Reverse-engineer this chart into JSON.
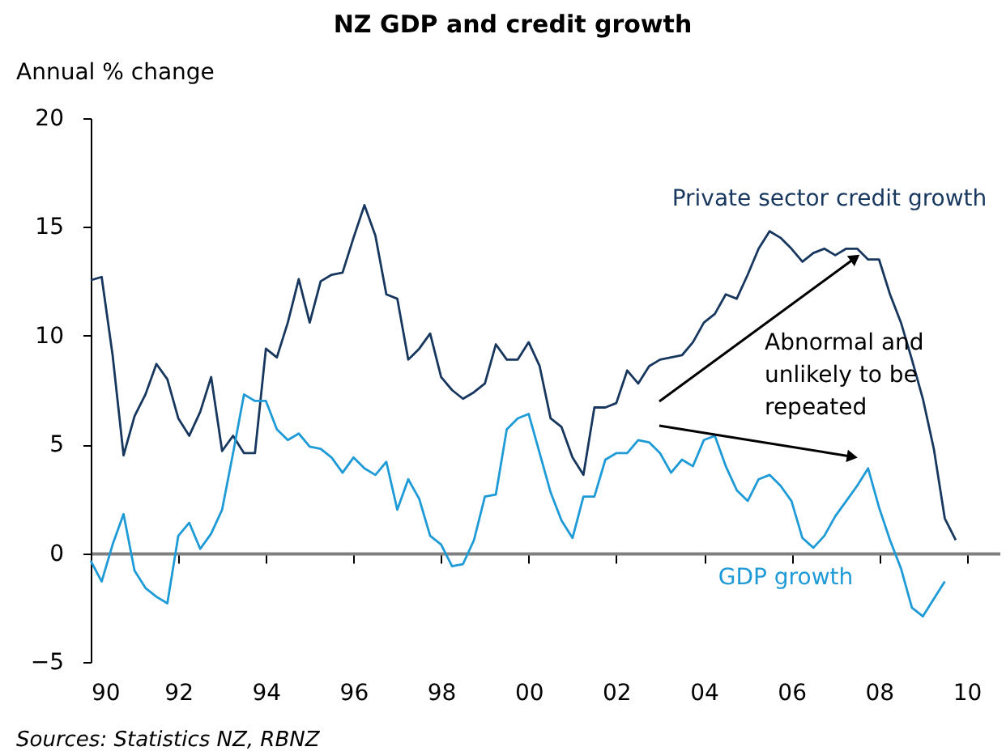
{
  "chart_data": {
    "type": "line",
    "title": "NZ GDP and credit growth",
    "ylabel": "Annual % change",
    "xlim": [
      1990,
      2010.75
    ],
    "xticks": [
      {
        "value": 1990,
        "label": "90"
      },
      {
        "value": 1992,
        "label": "92"
      },
      {
        "value": 1994,
        "label": "94"
      },
      {
        "value": 1996,
        "label": "96"
      },
      {
        "value": 1998,
        "label": "98"
      },
      {
        "value": 2000,
        "label": "00"
      },
      {
        "value": 2002,
        "label": "02"
      },
      {
        "value": 2004,
        "label": "04"
      },
      {
        "value": 2006,
        "label": "06"
      },
      {
        "value": 2008,
        "label": "08"
      },
      {
        "value": 2010,
        "label": "10"
      }
    ],
    "ylim": [
      -5,
      20
    ],
    "yticks": [
      -5,
      0,
      5,
      10,
      15,
      20
    ],
    "legend": false,
    "marker": "none",
    "line_style": "solid",
    "series": [
      {
        "name": "Private sector credit growth",
        "color": "#17375e",
        "x": [
          1990,
          1990.25,
          1990.5,
          1990.75,
          1991,
          1991.25,
          1991.5,
          1991.75,
          1992,
          1992.25,
          1992.5,
          1992.75,
          1993,
          1993.25,
          1993.5,
          1993.75,
          1994,
          1994.25,
          1994.5,
          1994.75,
          1995,
          1995.25,
          1995.5,
          1995.75,
          1996,
          1996.25,
          1996.5,
          1996.75,
          1997,
          1997.25,
          1997.5,
          1997.75,
          1998,
          1998.25,
          1998.5,
          1998.75,
          1999,
          1999.25,
          1999.5,
          1999.75,
          2000,
          2000.25,
          2000.5,
          2000.75,
          2001,
          2001.25,
          2001.5,
          2001.75,
          2002,
          2002.25,
          2002.5,
          2002.75,
          2003,
          2003.25,
          2003.5,
          2003.75,
          2004,
          2004.25,
          2004.5,
          2004.75,
          2005,
          2005.25,
          2005.5,
          2005.75,
          2006,
          2006.25,
          2006.5,
          2006.75,
          2007,
          2007.25,
          2007.5,
          2007.75,
          2008,
          2008.25,
          2008.5,
          2008.75,
          2009,
          2009.25,
          2009.5,
          2009.75
        ],
        "values": [
          12.55,
          12.7,
          9.1,
          4.5,
          6.3,
          7.3,
          8.7,
          8.0,
          6.2,
          5.4,
          6.5,
          8.1,
          4.7,
          5.4,
          4.6,
          4.6,
          9.4,
          9.0,
          10.6,
          12.6,
          10.6,
          12.5,
          12.8,
          12.9,
          14.5,
          16.0,
          14.6,
          11.9,
          11.7,
          8.9,
          9.4,
          10.1,
          8.1,
          7.5,
          7.1,
          7.4,
          7.8,
          9.6,
          8.9,
          8.9,
          9.7,
          8.6,
          6.2,
          5.8,
          4.4,
          3.6,
          6.7,
          6.7,
          6.9,
          8.4,
          7.8,
          8.6,
          8.9,
          9.0,
          9.1,
          9.7,
          10.6,
          11.0,
          11.9,
          11.7,
          12.8,
          14.0,
          14.8,
          14.5,
          14.0,
          13.4,
          13.8,
          14.0,
          13.7,
          14.0,
          14.0,
          13.5,
          13.5,
          11.9,
          10.6,
          8.9,
          7.1,
          4.8,
          1.6,
          0.6
        ]
      },
      {
        "name": "GDP growth",
        "color": "#1e9bd7",
        "x": [
          1990,
          1990.25,
          1990.5,
          1990.75,
          1991,
          1991.25,
          1991.5,
          1991.75,
          1992,
          1992.25,
          1992.5,
          1992.75,
          1993,
          1993.25,
          1993.5,
          1993.75,
          1994,
          1994.25,
          1994.5,
          1994.75,
          1995,
          1995.25,
          1995.5,
          1995.75,
          1996,
          1996.25,
          1996.5,
          1996.75,
          1997,
          1997.25,
          1997.5,
          1997.75,
          1998,
          1998.25,
          1998.5,
          1998.75,
          1999,
          1999.25,
          1999.5,
          1999.75,
          2000,
          2000.25,
          2000.5,
          2000.75,
          2001,
          2001.25,
          2001.5,
          2001.75,
          2002,
          2002.25,
          2002.5,
          2002.75,
          2003,
          2003.25,
          2003.5,
          2003.75,
          2004,
          2004.25,
          2004.5,
          2004.75,
          2005,
          2005.25,
          2005.5,
          2005.75,
          2006,
          2006.25,
          2006.5,
          2006.75,
          2007,
          2007.25,
          2007.5,
          2007.75,
          2008,
          2008.25,
          2008.5,
          2008.75,
          2009,
          2009.25,
          2009.5
        ],
        "values": [
          -0.35,
          -1.3,
          0.4,
          1.8,
          -0.8,
          -1.6,
          -2.0,
          -2.3,
          0.8,
          1.4,
          0.2,
          0.9,
          2.0,
          4.6,
          7.3,
          7.0,
          7.0,
          5.7,
          5.2,
          5.5,
          4.9,
          4.8,
          4.4,
          3.7,
          4.4,
          3.9,
          3.6,
          4.2,
          2.0,
          3.4,
          2.5,
          0.8,
          0.4,
          -0.6,
          -0.5,
          0.6,
          2.6,
          2.7,
          5.7,
          6.2,
          6.4,
          4.6,
          2.8,
          1.5,
          0.7,
          2.6,
          2.6,
          4.3,
          4.6,
          4.6,
          5.2,
          5.1,
          4.6,
          3.7,
          4.3,
          4.0,
          5.2,
          5.4,
          4.0,
          2.9,
          2.4,
          3.4,
          3.6,
          3.1,
          2.4,
          0.7,
          0.25,
          0.8,
          1.7,
          2.4,
          3.1,
          3.9,
          2.1,
          0.6,
          -0.7,
          -2.5,
          -2.9,
          -2.1,
          -1.3
        ]
      }
    ],
    "annotations": [
      "Abnormal and unlikely to be repeated",
      "Sources: Statistics NZ, RBNZ"
    ]
  }
}
